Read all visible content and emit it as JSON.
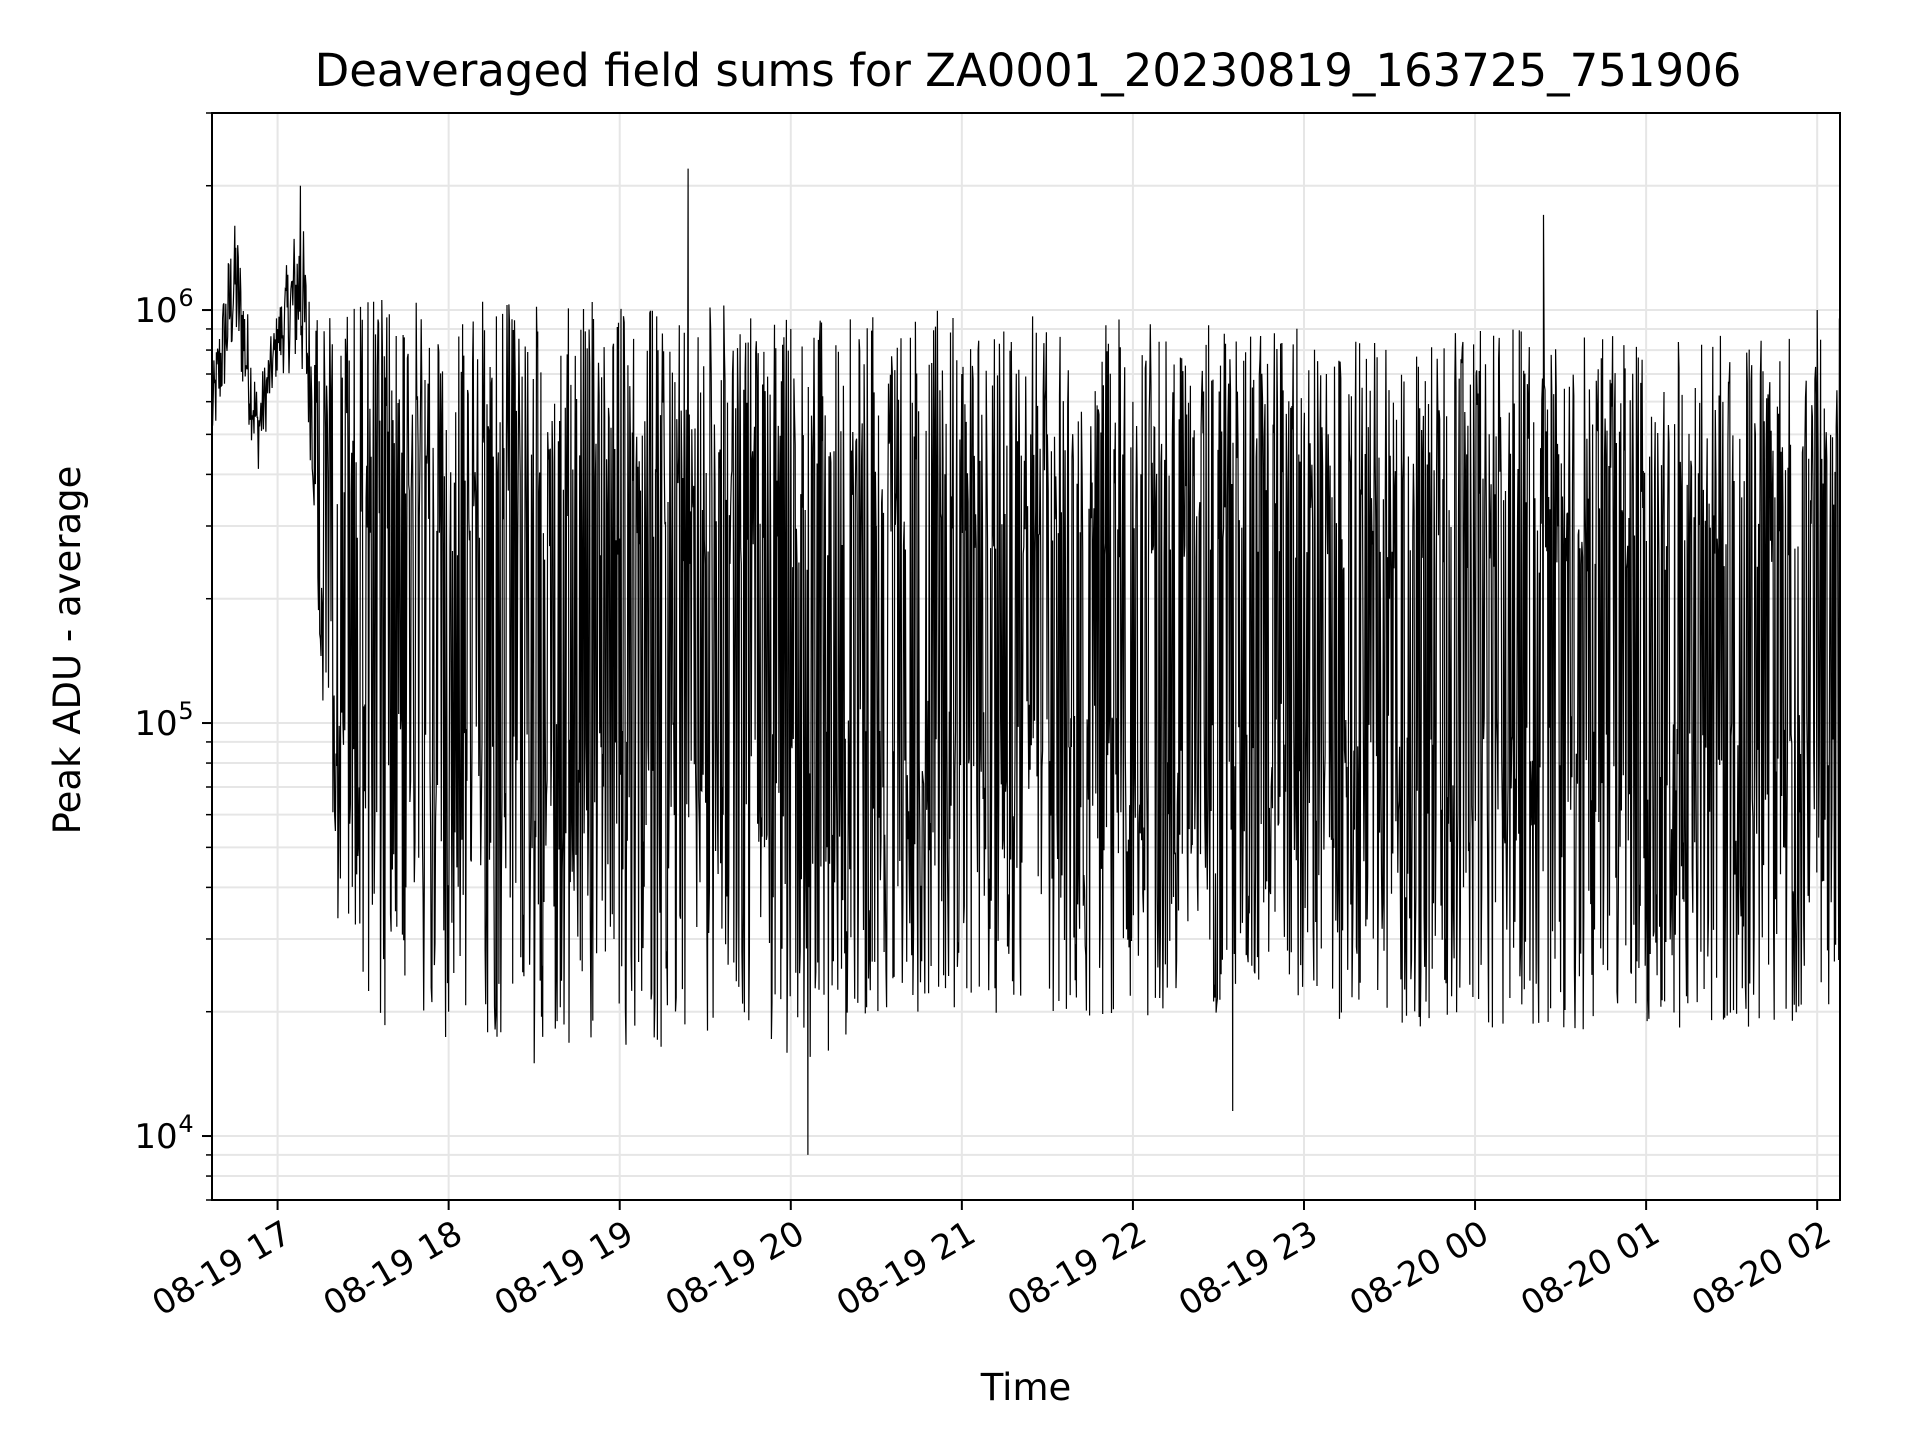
{
  "chart_data": {
    "type": "line",
    "title": "Deaveraged field sums for ZA0001_20230819_163725_751906",
    "xlabel": "Time",
    "ylabel": "Peak ADU - average",
    "yscale": "log",
    "ylim": [
      7000,
      3000000
    ],
    "xlim": [
      "2023-08-19 16:37",
      "2023-08-20 02:08"
    ],
    "grid": true,
    "line_color": "#000000",
    "grid_color": "#e6e6e6",
    "x_ticks": [
      "08-19 17",
      "08-19 18",
      "08-19 19",
      "08-19 20",
      "08-19 21",
      "08-19 22",
      "08-19 23",
      "08-20 00",
      "08-20 01",
      "08-20 02"
    ],
    "y_ticks": [
      {
        "base": "10",
        "exp": "4",
        "value": 10000
      },
      {
        "base": "10",
        "exp": "5",
        "value": 100000
      },
      {
        "base": "10",
        "exp": "6",
        "value": 1000000
      }
    ],
    "series": [
      {
        "x": [
          "2023-08-19 16:37",
          "2023-08-19 16:45",
          "2023-08-19 16:53",
          "2023-08-19 17:00",
          "2023-08-19 17:08",
          "2023-08-19 17:12",
          "2023-08-19 17:16",
          "2023-08-19 17:20",
          "2023-08-19 17:30",
          "2023-08-19 17:45",
          "2023-08-19 18:00",
          "2023-08-19 18:30",
          "2023-08-19 18:58",
          "2023-08-19 19:24",
          "2023-08-19 20:00",
          "2023-08-19 20:06",
          "2023-08-19 20:30",
          "2023-08-19 21:00",
          "2023-08-19 21:30",
          "2023-08-19 22:00",
          "2023-08-19 22:35",
          "2023-08-19 23:00",
          "2023-08-19 23:30",
          "2023-08-20 00:00",
          "2023-08-20 00:24",
          "2023-08-20 01:00",
          "2023-08-20 01:30",
          "2023-08-20 02:00",
          "2023-08-20 02:08"
        ],
        "y": [
          600000,
          1600000,
          550000,
          900000,
          2000000,
          600000,
          150000,
          60000,
          25000,
          40000,
          20000,
          15000,
          30000,
          2200000,
          900000,
          9000,
          300000,
          700000,
          500000,
          600000,
          11500,
          500000,
          200000,
          80000,
          1700000,
          40000,
          100000,
          1000000,
          30000
        ],
        "y_upper_envelope": [
          700000,
          1800000,
          650000,
          1000000,
          1900000,
          1000000,
          1000000,
          1000000,
          1100000,
          1050000,
          1050000,
          1050000,
          1050000,
          1050000,
          1000000,
          950000,
          1000000,
          1000000,
          1000000,
          950000,
          950000,
          900000,
          900000,
          900000,
          900000,
          850000,
          900000,
          1000000,
          1000000
        ],
        "y_lower_envelope": [
          450000,
          800000,
          400000,
          700000,
          700000,
          400000,
          80000,
          35000,
          18000,
          18000,
          17000,
          17000,
          16000,
          16000,
          15000,
          14000,
          20000,
          20000,
          19000,
          19000,
          20000,
          20000,
          18000,
          18000,
          18000,
          18000,
          18000,
          19000,
          20000
        ]
      }
    ]
  }
}
